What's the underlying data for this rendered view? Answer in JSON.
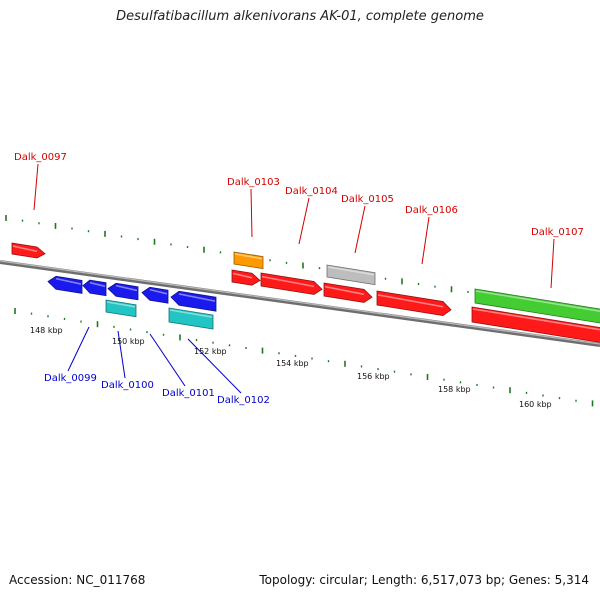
{
  "title": "Desulfatibacillum alkenivorans AK-01, complete genome",
  "footer": {
    "accession": "Accession: NC_011768",
    "topology": "Topology: circular; Length: 6,517,073 bp; Genes: 5,314"
  },
  "colors": {
    "backbone": "#8a8a8a",
    "tick": "#1f7a1f",
    "label_red": "#d40000",
    "label_blue": "#0000cc",
    "gene_red": "#ff1a1a",
    "gene_blue": "#1a1aee",
    "gene_cyan": "#22c4c4",
    "gene_orange": "#ff9900",
    "gene_gray": "#bdbdbd",
    "gene_green": "#44cc33"
  },
  "scale": {
    "unit": "kbp",
    "labels": [
      "148 kbp",
      "150 kbp",
      "152 kbp",
      "154 kbp",
      "156 kbp",
      "158 kbp",
      "160 kbp"
    ]
  },
  "genes": [
    {
      "id": "Dalk_0097",
      "color": "red",
      "strand": "forward"
    },
    {
      "id": "Dalk_0099",
      "color": "blue",
      "strand": "reverse"
    },
    {
      "id": "Dalk_0100",
      "color": "cyan",
      "strand": "reverse"
    },
    {
      "id": "Dalk_0101",
      "color": "blue",
      "strand": "reverse"
    },
    {
      "id": "Dalk_0102",
      "color": "cyan",
      "strand": "reverse"
    },
    {
      "id": "Dalk_0103",
      "color": "orange",
      "strand": "forward"
    },
    {
      "id": "Dalk_0104",
      "color": "red",
      "strand": "forward"
    },
    {
      "id": "Dalk_0105",
      "color": "gray",
      "strand": "forward"
    },
    {
      "id": "Dalk_0106",
      "color": "red",
      "strand": "forward"
    },
    {
      "id": "Dalk_0107",
      "color": "green",
      "strand": "forward"
    }
  ]
}
